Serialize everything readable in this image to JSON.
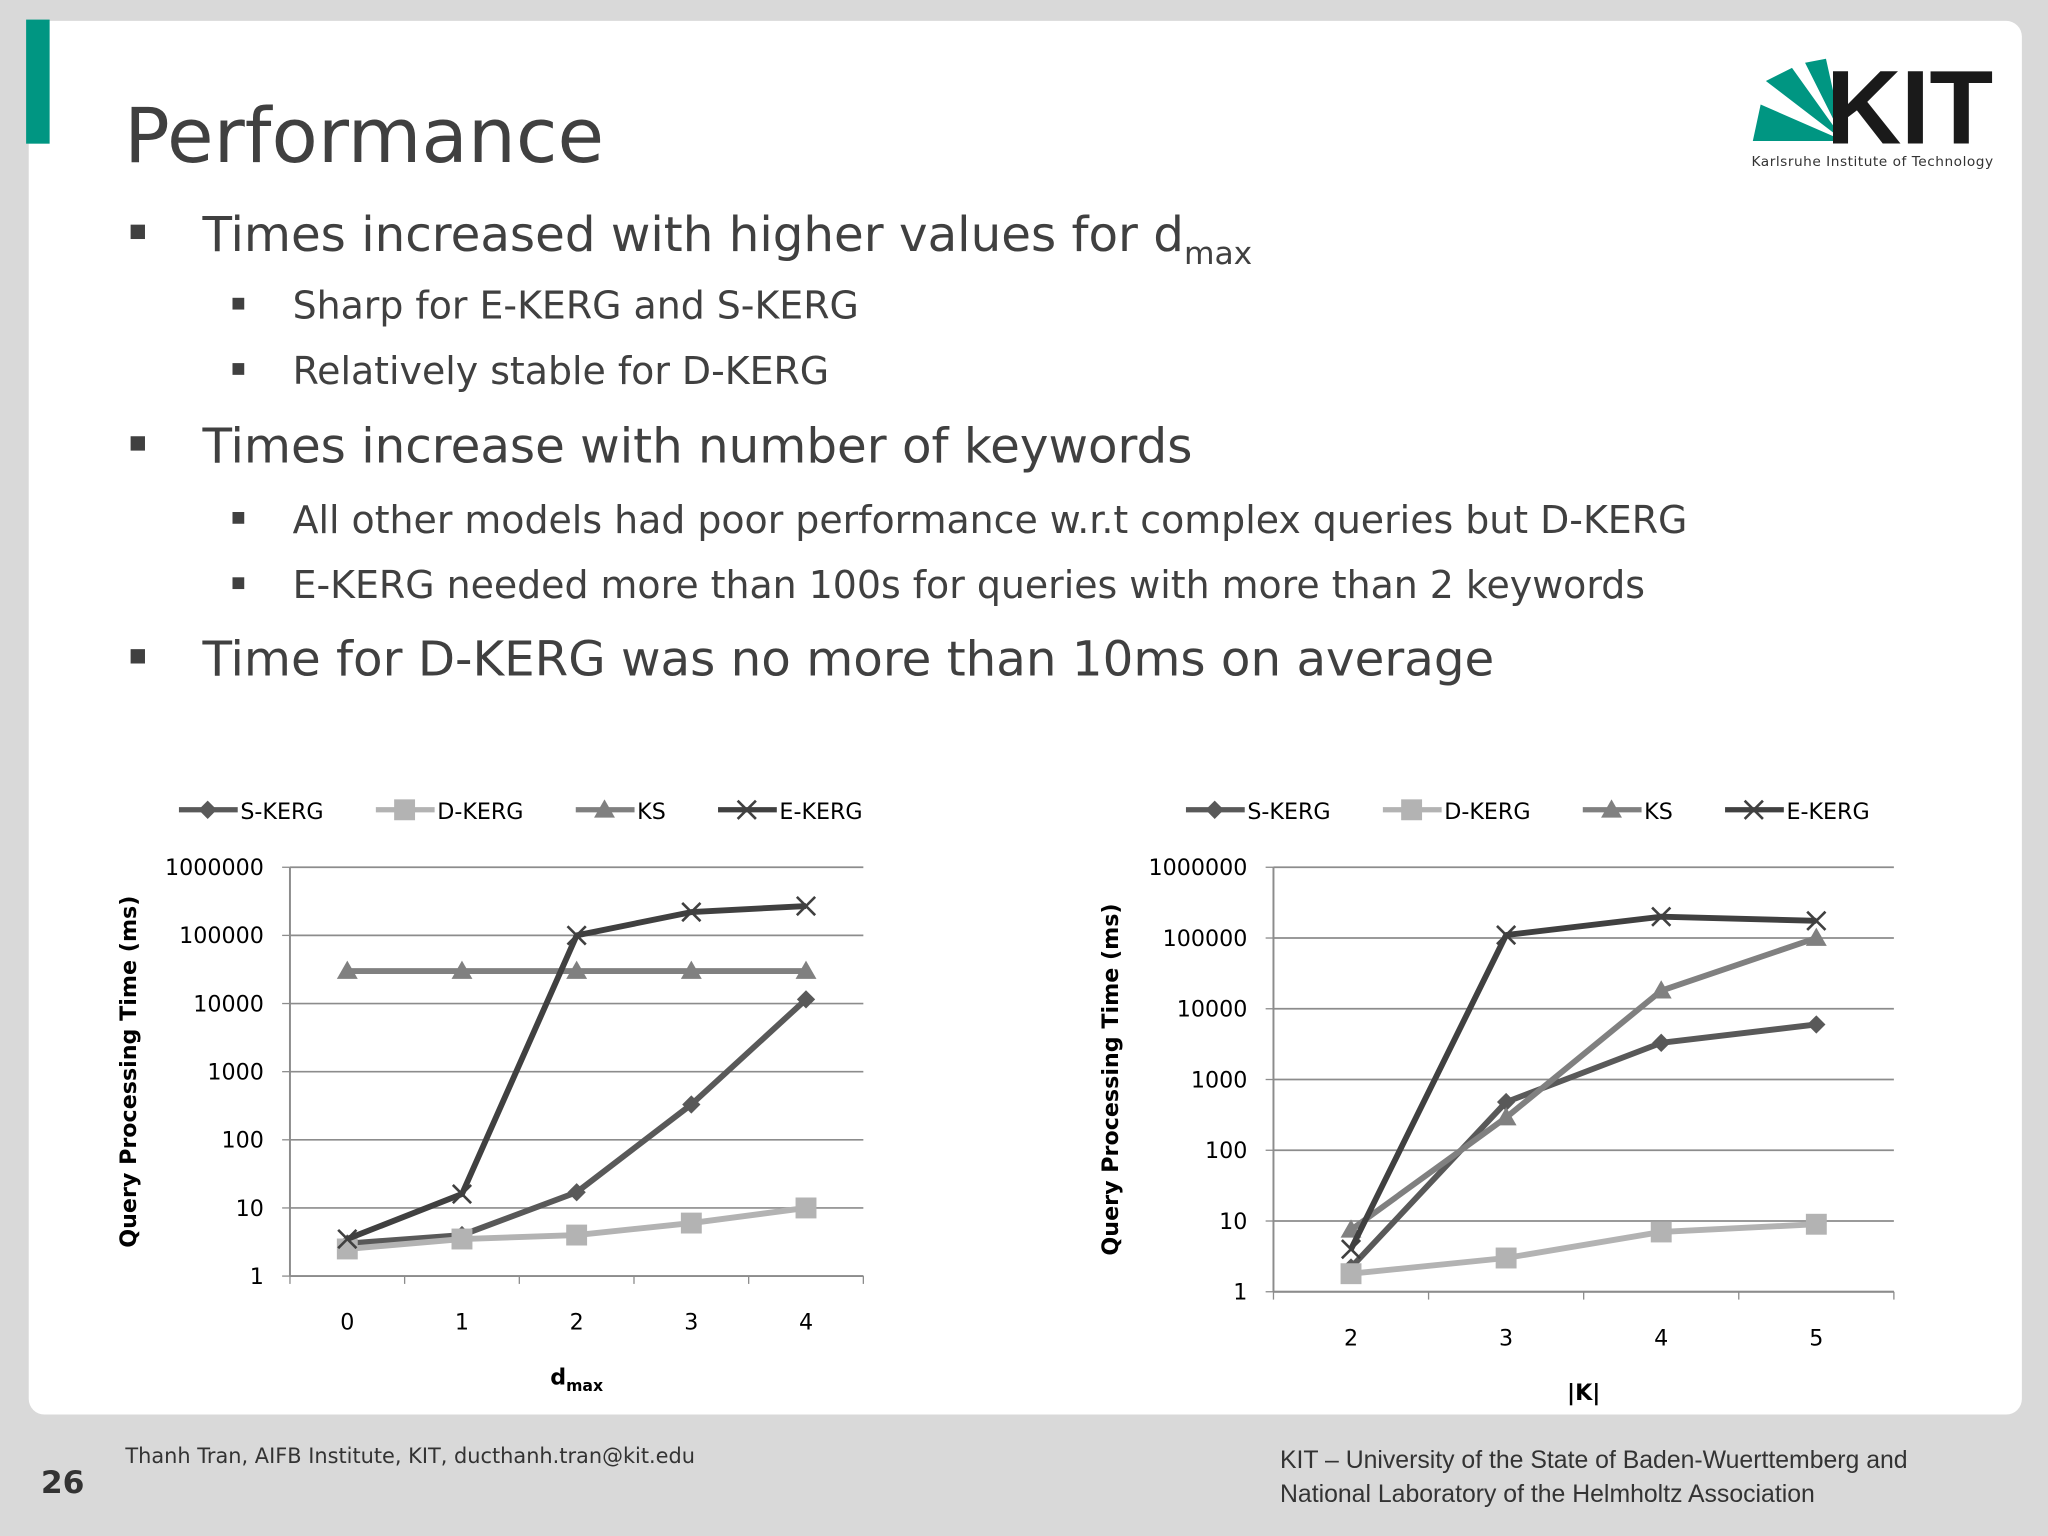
{
  "slide": {
    "title": "Performance",
    "number": "26",
    "author": "Thanh Tran, AIFB Institute, KIT, ducthanh.tran@kit.edu",
    "footer": [
      "KIT – University of the State of Baden-Wuerttemberg and",
      "National Laboratory of the Helmholtz Association"
    ],
    "logo": {
      "name": "KIT",
      "subtitle": "Karlsruhe Institute of Technology"
    }
  },
  "bullets": [
    {
      "level": 1,
      "text": "Times increased with higher values for d",
      "sub": "max"
    },
    {
      "level": 2,
      "text": "Sharp for E-KERG and S-KERG"
    },
    {
      "level": 2,
      "text": "Relatively  stable for D-KERG"
    },
    {
      "level": 1,
      "text": "Times increase with number of keywords"
    },
    {
      "level": 2,
      "text": "All other models had poor performance w.r.t complex queries but D-KERG"
    },
    {
      "level": 2,
      "text": "E-KERG needed more than 100s for queries with more than 2 keywords"
    },
    {
      "level": 1,
      "text": "Time for D-KERG was no more than 10ms on average"
    }
  ],
  "chart_data": [
    {
      "type": "line",
      "categories": [
        "0",
        "1",
        "2",
        "3",
        "4"
      ],
      "series": [
        {
          "name": "S-KERG",
          "color": "#595959",
          "marker": "diamond",
          "values": [
            3,
            4,
            17,
            330,
            11500
          ]
        },
        {
          "name": "D-KERG",
          "color": "#b3b3b3",
          "marker": "square",
          "values": [
            2.5,
            3.5,
            4,
            6,
            10
          ]
        },
        {
          "name": "KS",
          "color": "#808080",
          "marker": "triangle",
          "values": [
            30000,
            30000,
            30000,
            30000,
            30000
          ]
        },
        {
          "name": "E-KERG",
          "color": "#404040",
          "marker": "x",
          "values": [
            3.5,
            16,
            100000,
            220000,
            270000
          ]
        }
      ],
      "ylim": [
        1,
        1000000
      ],
      "yticks": [
        1,
        10,
        100,
        1000,
        10000,
        100000,
        1000000
      ],
      "log_scale": true,
      "grid": true,
      "legend": "top",
      "ylabel": "Query Processing Time (ms)",
      "xlabel": {
        "text": "d",
        "sub": "max"
      }
    },
    {
      "type": "line",
      "categories": [
        "2",
        "3",
        "4",
        "5"
      ],
      "series": [
        {
          "name": "S-KERG",
          "color": "#595959",
          "marker": "diamond",
          "values": [
            2.2,
            480,
            3300,
            6000
          ]
        },
        {
          "name": "D-KERG",
          "color": "#b3b3b3",
          "marker": "square",
          "values": [
            1.8,
            3,
            7,
            9
          ]
        },
        {
          "name": "KS",
          "color": "#808080",
          "marker": "triangle",
          "values": [
            7.5,
            290,
            18000,
            100000
          ]
        },
        {
          "name": "E-KERG",
          "color": "#404040",
          "marker": "x",
          "values": [
            4,
            110000,
            200000,
            175000
          ]
        }
      ],
      "ylim": [
        1,
        1000000
      ],
      "yticks": [
        1,
        10,
        100,
        1000,
        10000,
        100000,
        1000000
      ],
      "log_scale": true,
      "grid": true,
      "legend": "top",
      "ylabel": "Query Processing Time (ms)",
      "xlabel": {
        "text": "|K|"
      }
    }
  ]
}
